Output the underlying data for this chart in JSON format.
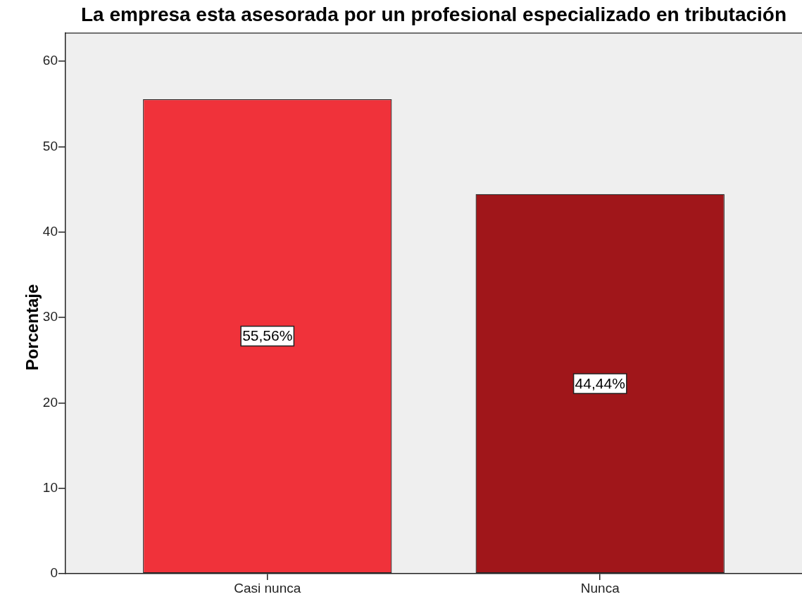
{
  "chart_data": {
    "type": "bar",
    "title": "La empresa esta asesorada por un profesional especializado en tributación",
    "ylabel": "Porcentaje",
    "categories": [
      "Casi nunca",
      "Nunca"
    ],
    "values": [
      55.56,
      44.44
    ],
    "colors": [
      "#f0323a",
      "#a0161a"
    ],
    "value_labels": [
      "55,56%",
      "44,44%"
    ],
    "ylim": [
      0,
      63.3
    ],
    "yticks": [
      0,
      10,
      20,
      30,
      40,
      50,
      60
    ]
  }
}
